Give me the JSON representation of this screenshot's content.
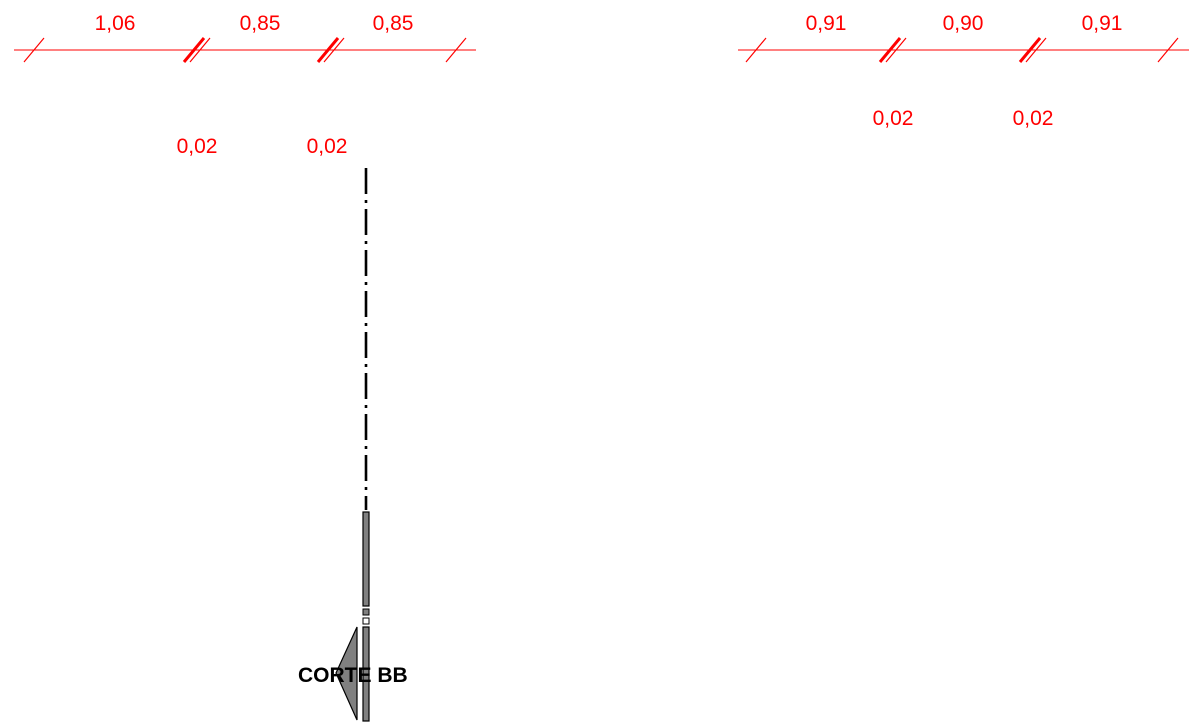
{
  "dimensions": {
    "left_chain": [
      "1,06",
      "0,85",
      "0,85"
    ],
    "left_gaps": [
      "0,02",
      "0,02"
    ],
    "right_chain": [
      "0,91",
      "0,90",
      "0,91"
    ],
    "right_gaps": [
      "0,02",
      "0,02"
    ]
  },
  "section": {
    "label": "CORTE BB"
  },
  "colors": {
    "dimension": "#ff0000",
    "section_line": "#000000",
    "arrow_fill": "#808080"
  }
}
